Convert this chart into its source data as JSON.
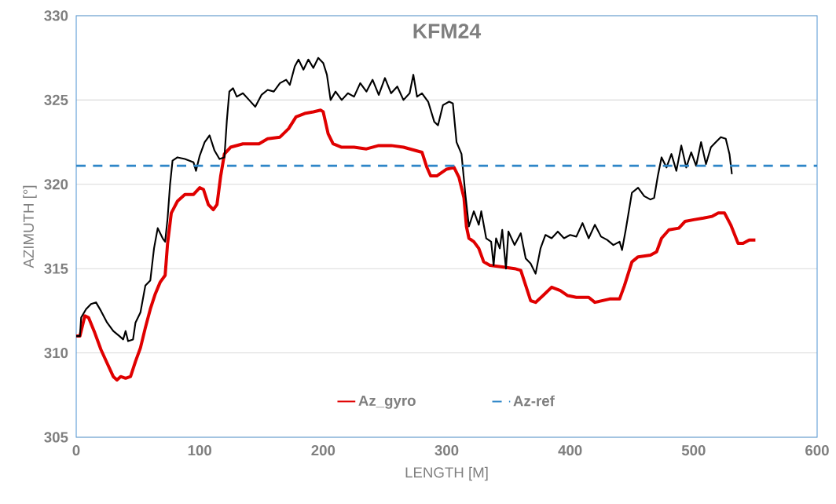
{
  "chart_data": {
    "type": "line",
    "title": "KFM24",
    "xlabel": "LENGTH [M]",
    "ylabel": "AZIMUTH [°]",
    "xlim": [
      0,
      600
    ],
    "xticks": [
      0,
      100,
      200,
      300,
      400,
      500,
      600
    ],
    "ylim": [
      305,
      330
    ],
    "yticks": [
      305,
      310,
      315,
      320,
      325,
      330
    ],
    "grid": "y",
    "legend": "bottom",
    "marker": "none",
    "series": [
      {
        "name": "Az_gyro",
        "color": "#e00000",
        "line_style": "solid",
        "x": [
          0,
          3,
          7,
          10,
          15,
          20,
          25,
          30,
          33,
          36,
          40,
          44,
          48,
          52,
          56,
          60,
          64,
          68,
          72,
          74,
          77,
          82,
          88,
          95,
          100,
          103,
          107,
          111,
          114,
          117,
          120,
          125,
          135,
          148,
          155,
          165,
          172,
          178,
          185,
          192,
          198,
          200,
          204,
          208,
          215,
          225,
          235,
          245,
          255,
          265,
          275,
          280,
          284,
          287,
          292,
          300,
          306,
          310,
          314,
          316,
          318,
          322,
          326,
          330,
          335,
          345,
          355,
          360,
          364,
          368,
          372,
          378,
          385,
          392,
          398,
          405,
          415,
          420,
          426,
          432,
          440,
          444,
          450,
          455,
          465,
          470,
          474,
          480,
          488,
          493,
          500,
          508,
          515,
          520,
          525,
          530,
          536,
          540,
          545,
          550
        ],
        "values": [
          311,
          311,
          312.2,
          312.1,
          311.2,
          310.2,
          309.4,
          308.6,
          308.4,
          308.6,
          308.5,
          308.6,
          309.5,
          310.3,
          311.5,
          312.6,
          313.5,
          314.2,
          314.6,
          316.5,
          318.3,
          319.0,
          319.4,
          319.4,
          319.8,
          319.7,
          318.8,
          318.5,
          318.8,
          320.5,
          321.8,
          322.2,
          322.4,
          322.4,
          322.7,
          322.8,
          323.3,
          324.0,
          324.2,
          324.3,
          324.4,
          324.3,
          323.0,
          322.4,
          322.2,
          322.2,
          322.1,
          322.3,
          322.3,
          322.2,
          322.0,
          321.9,
          321.0,
          320.5,
          320.5,
          320.9,
          321.0,
          320.4,
          319.2,
          317.5,
          316.8,
          316.6,
          316.2,
          315.4,
          315.2,
          315.1,
          315.0,
          314.9,
          314.0,
          313.1,
          313.0,
          313.4,
          313.9,
          313.7,
          313.4,
          313.3,
          313.3,
          313.0,
          313.1,
          313.2,
          313.2,
          314.0,
          315.4,
          315.7,
          315.8,
          316.0,
          316.8,
          317.3,
          317.4,
          317.8,
          317.9,
          318.0,
          318.1,
          318.3,
          318.3,
          317.6,
          316.5,
          316.5,
          316.7,
          316.7
        ]
      },
      {
        "color": "#000000",
        "line_style": "solid",
        "x": [
          0,
          3,
          4,
          8,
          12,
          16,
          20,
          25,
          30,
          35,
          38,
          40,
          42,
          46,
          48,
          52,
          56,
          60,
          63,
          66,
          70,
          72,
          74,
          76,
          78,
          82,
          88,
          95,
          97,
          100,
          104,
          108,
          112,
          116,
          120,
          122,
          124,
          127,
          130,
          135,
          140,
          145,
          150,
          155,
          160,
          165,
          170,
          173,
          177,
          180,
          184,
          188,
          192,
          196,
          200,
          203,
          206,
          210,
          215,
          220,
          225,
          230,
          235,
          240,
          245,
          250,
          255,
          260,
          265,
          270,
          273,
          276,
          280,
          285,
          290,
          293,
          297,
          302,
          305,
          308,
          312,
          315,
          318,
          322,
          326,
          328,
          332,
          336,
          338,
          340,
          343,
          345,
          348,
          350,
          355,
          360,
          364,
          368,
          372,
          376,
          380,
          385,
          390,
          395,
          400,
          405,
          410,
          415,
          420,
          425,
          430,
          435,
          440,
          442,
          445,
          450,
          455,
          460,
          465,
          468,
          471,
          474,
          478,
          482,
          486,
          490,
          494,
          498,
          502,
          506,
          510,
          514,
          518,
          522,
          526,
          529,
          531
        ],
        "values": [
          311,
          311,
          312.1,
          312.6,
          312.9,
          313.0,
          312.5,
          311.8,
          311.3,
          311.0,
          310.8,
          311.3,
          310.7,
          310.8,
          311.8,
          312.4,
          314.0,
          314.3,
          316.2,
          317.4,
          316.8,
          316.6,
          318.0,
          320.0,
          321.4,
          321.6,
          321.5,
          321.3,
          320.8,
          321.7,
          322.5,
          322.9,
          322.0,
          321.5,
          321.6,
          323.8,
          325.5,
          325.7,
          325.2,
          325.4,
          325.0,
          324.6,
          325.3,
          325.6,
          325.5,
          326.0,
          326.2,
          325.9,
          327.0,
          327.4,
          326.8,
          327.4,
          326.9,
          327.5,
          327.2,
          326.5,
          325.0,
          325.5,
          325.0,
          325.4,
          325.2,
          326.0,
          325.5,
          326.2,
          325.3,
          326.3,
          325.4,
          325.8,
          325.0,
          325.4,
          326.5,
          325.2,
          325.4,
          324.9,
          323.7,
          323.5,
          324.7,
          324.9,
          324.8,
          322.5,
          321.8,
          319.5,
          317.5,
          318.4,
          317.6,
          318.4,
          316.8,
          316.6,
          315.2,
          316.8,
          316.2,
          317.3,
          315.0,
          317.2,
          316.4,
          317.1,
          315.6,
          315.3,
          314.7,
          316.2,
          317.0,
          316.8,
          317.2,
          316.8,
          317.0,
          316.9,
          317.7,
          316.8,
          317.6,
          316.9,
          316.7,
          316.4,
          316.6,
          316.1,
          317.3,
          319.5,
          319.8,
          319.3,
          319.1,
          319.2,
          320.5,
          321.6,
          321.0,
          321.8,
          320.8,
          322.3,
          321.0,
          321.9,
          321.1,
          322.5,
          321.2,
          322.2,
          322.5,
          322.8,
          322.7,
          321.8,
          320.6
        ]
      },
      {
        "name": "Az-ref",
        "color": "#2e86c8",
        "line_style": "dashed",
        "x": [
          0,
          600
        ],
        "values": [
          321.1,
          321.1
        ]
      }
    ]
  }
}
